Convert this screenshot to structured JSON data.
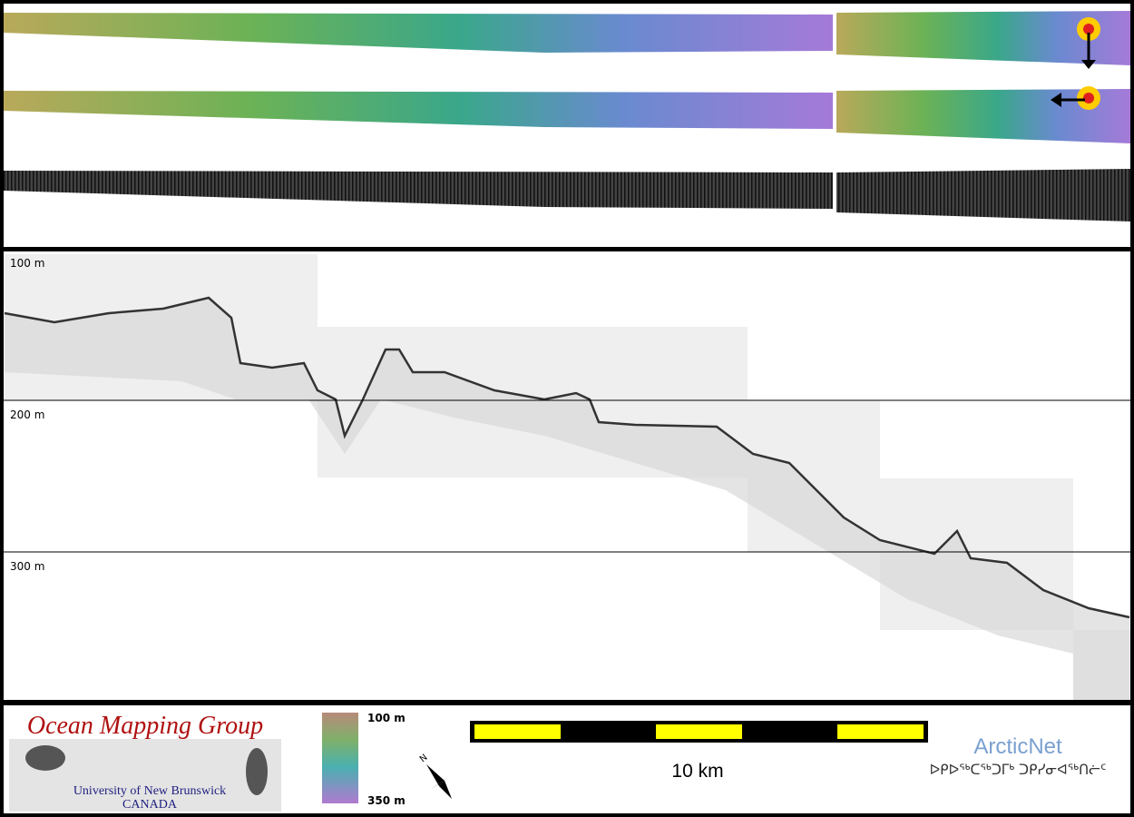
{
  "profile": {
    "depth_labels": [
      "100 m",
      "200 m",
      "300 m"
    ]
  },
  "footer": {
    "logo": {
      "title": "Ocean Mapping Group",
      "university": "University of New Brunswick",
      "country": "CANADA"
    },
    "colorbar": {
      "top_label": "100 m",
      "bottom_label": "350 m"
    },
    "scale_bar": {
      "label": "10 km"
    },
    "partner": {
      "name": "ArcticNet",
      "inuktitut": "ᐅᑭᐅᖅᑕᖅᑐᒥᒃ ᑐᑭᓯᓂᐊᖅᑎᓖᑦ"
    }
  }
}
